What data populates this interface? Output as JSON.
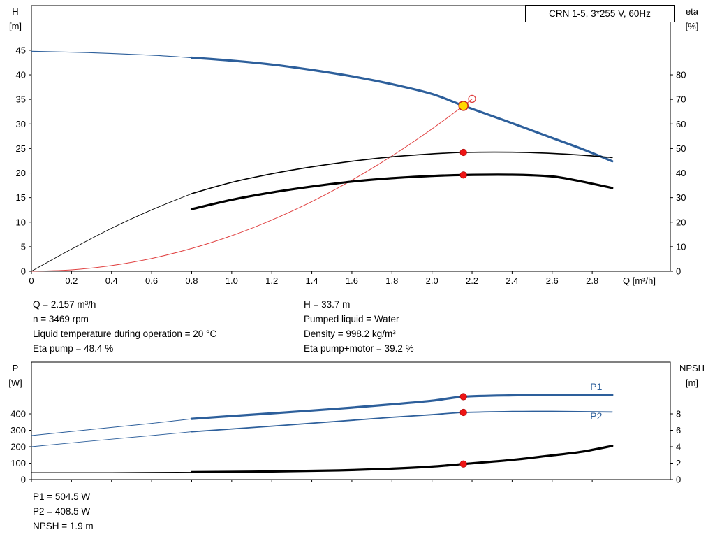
{
  "header": {
    "model_box": "CRN 1-5, 3*255 V, 60Hz"
  },
  "duty_info": {
    "left": [
      "Q = 2.157 m³/h",
      "n = 3469 rpm",
      "Liquid temperature during operation = 20 °C",
      "Eta pump = 48.4 %"
    ],
    "right": [
      "H = 33.7 m",
      "Pumped liquid = Water",
      "Density = 998.2 kg/m³",
      "Eta pump+motor = 39.2 %"
    ]
  },
  "power_info": [
    "P1 = 504.5 W",
    "P2 = 408.5 W",
    "NPSH = 1.9 m"
  ],
  "colors": {
    "curve_blue": "#2d5f9b",
    "curve_red": "#e04040",
    "curve_black": "#000000",
    "marker_red": "#ee1515",
    "marker_yellow": "#ffd800"
  },
  "chart_data": [
    {
      "name": "qh-eta-chart",
      "type": "line",
      "title": "CRN 1-5, 3*255 V, 60Hz",
      "x_axis": {
        "label": "Q [m³/h]",
        "min": 0,
        "max": 3.19,
        "tick_values": [
          0,
          0.2,
          0.4,
          0.6,
          0.8,
          1.0,
          1.2,
          1.4,
          1.6,
          1.8,
          2.0,
          2.2,
          2.4,
          2.6,
          2.8
        ],
        "tick_labels": [
          "0",
          "0.2",
          "0.4",
          "0.6",
          "0.8",
          "1.0",
          "1.2",
          "1.4",
          "1.6",
          "1.8",
          "2.0",
          "2.2",
          "2.4",
          "2.6",
          "2.8"
        ]
      },
      "y_left": {
        "title": [
          "H",
          "[m]"
        ],
        "min": 0,
        "max": 54.1,
        "tick_values": [
          0,
          5,
          10,
          15,
          20,
          25,
          30,
          35,
          40,
          45
        ],
        "tick_labels": [
          "0",
          "5",
          "10",
          "15",
          "20",
          "25",
          "30",
          "35",
          "40",
          "45"
        ]
      },
      "y_right": {
        "title": [
          "eta",
          "[%]"
        ],
        "min": 0,
        "max": 108.2,
        "tick_values": [
          0,
          10,
          20,
          30,
          40,
          50,
          60,
          70,
          80
        ],
        "tick_labels": [
          "0",
          "10",
          "20",
          "30",
          "40",
          "50",
          "60",
          "70",
          "80"
        ]
      },
      "series": [
        {
          "name": "head-curve-lead",
          "axis": "left",
          "color": "#2d5f9b",
          "width": 1.1,
          "points": [
            [
              0,
              44.8
            ],
            [
              0.3,
              44.5
            ],
            [
              0.6,
              44.0
            ],
            [
              0.8,
              43.5
            ]
          ]
        },
        {
          "name": "head-curve",
          "axis": "left",
          "color": "#2d5f9b",
          "width": 3.2,
          "points": [
            [
              0.8,
              43.5
            ],
            [
              1.0,
              42.9
            ],
            [
              1.2,
              42.1
            ],
            [
              1.4,
              41.0
            ],
            [
              1.6,
              39.7
            ],
            [
              1.8,
              38.1
            ],
            [
              2.0,
              36.1
            ],
            [
              2.157,
              33.7
            ],
            [
              2.35,
              30.9
            ],
            [
              2.55,
              27.9
            ],
            [
              2.75,
              24.9
            ],
            [
              2.9,
              22.4
            ]
          ]
        },
        {
          "name": "system-curve",
          "axis": "left",
          "color": "#e04040",
          "width": 1,
          "points": [
            [
              0,
              0
            ],
            [
              0.2,
              0.29
            ],
            [
              0.4,
              1.16
            ],
            [
              0.6,
              2.61
            ],
            [
              0.8,
              4.64
            ],
            [
              1.0,
              7.24
            ],
            [
              1.2,
              10.43
            ],
            [
              1.4,
              14.2
            ],
            [
              1.6,
              18.54
            ],
            [
              1.8,
              23.47
            ],
            [
              2.0,
              28.98
            ],
            [
              2.157,
              33.7
            ],
            [
              2.2,
              35.06
            ]
          ]
        },
        {
          "name": "eta-pump-curve-lead",
          "axis": "right",
          "color": "#000000",
          "width": 0.9,
          "points": [
            [
              0,
              0
            ],
            [
              0.2,
              9.0
            ],
            [
              0.4,
              17.5
            ],
            [
              0.6,
              25.0
            ],
            [
              0.8,
              31.6
            ]
          ]
        },
        {
          "name": "eta-pump-curve",
          "axis": "right",
          "color": "#000000",
          "width": 1.6,
          "points": [
            [
              0.8,
              31.6
            ],
            [
              1.0,
              36.2
            ],
            [
              1.2,
              39.7
            ],
            [
              1.4,
              42.5
            ],
            [
              1.6,
              44.8
            ],
            [
              1.8,
              46.6
            ],
            [
              2.0,
              47.8
            ],
            [
              2.157,
              48.4
            ],
            [
              2.4,
              48.5
            ],
            [
              2.6,
              48.0
            ],
            [
              2.75,
              47.3
            ],
            [
              2.9,
              46.3
            ]
          ]
        },
        {
          "name": "eta-pump-motor-curve",
          "axis": "right",
          "color": "#000000",
          "width": 3.2,
          "points": [
            [
              0.8,
              25.3
            ],
            [
              1.0,
              29.1
            ],
            [
              1.2,
              32.1
            ],
            [
              1.4,
              34.5
            ],
            [
              1.6,
              36.5
            ],
            [
              1.8,
              37.9
            ],
            [
              2.0,
              38.8
            ],
            [
              2.157,
              39.2
            ],
            [
              2.4,
              39.3
            ],
            [
              2.6,
              38.6
            ],
            [
              2.75,
              36.5
            ],
            [
              2.9,
              33.9
            ]
          ]
        }
      ],
      "markers": [
        {
          "name": "duty-point",
          "axis": "left",
          "x": 2.157,
          "y": 33.7,
          "r": 6.5,
          "fill": "#ffd800",
          "stroke": "#c8281e",
          "stroke_width": 1.6
        },
        {
          "name": "requested-duty-point",
          "axis": "left",
          "x": 2.2,
          "y": 35.1,
          "r": 5,
          "fill": "none",
          "stroke": "#e04040",
          "stroke_width": 1.3
        },
        {
          "name": "eta-pump-point",
          "axis": "right",
          "x": 2.157,
          "y": 48.4,
          "r": 4.8,
          "fill": "#ee1515",
          "stroke": "#a00000",
          "stroke_width": 0.6
        },
        {
          "name": "eta-pump-motor-point",
          "axis": "right",
          "x": 2.157,
          "y": 39.2,
          "r": 4.8,
          "fill": "#ee1515",
          "stroke": "#a00000",
          "stroke_width": 0.6
        }
      ],
      "labels": []
    },
    {
      "name": "power-npsh-chart",
      "type": "line",
      "x_axis": {
        "label": "",
        "min": 0,
        "max": 3.19,
        "tick_values": [
          0,
          0.2,
          0.4,
          0.6,
          0.8,
          1.0,
          1.2,
          1.4,
          1.6,
          1.8,
          2.0,
          2.2,
          2.4,
          2.6,
          2.8
        ],
        "tick_labels": []
      },
      "y_left": {
        "title": [
          "P",
          "[W]"
        ],
        "min": 0,
        "max": 715,
        "tick_values": [
          0,
          100,
          200,
          300,
          400
        ],
        "tick_labels": [
          "0",
          "100",
          "200",
          "300",
          "400"
        ]
      },
      "y_right": {
        "title": [
          "NPSH",
          "[m]"
        ],
        "min": 0,
        "max": 14.3,
        "tick_values": [
          0,
          2,
          4,
          6,
          8
        ],
        "tick_labels": [
          "0",
          "2",
          "4",
          "6",
          "8"
        ]
      },
      "series": [
        {
          "name": "p1-curve-lead",
          "axis": "left",
          "color": "#2d5f9b",
          "width": 1.0,
          "points": [
            [
              0,
              268
            ],
            [
              0.3,
              305
            ],
            [
              0.6,
              342
            ],
            [
              0.8,
              370
            ]
          ]
        },
        {
          "name": "p1-curve",
          "axis": "left",
          "color": "#2d5f9b",
          "width": 3.2,
          "points": [
            [
              0.8,
              370
            ],
            [
              1.0,
              387
            ],
            [
              1.2,
              403
            ],
            [
              1.4,
              420
            ],
            [
              1.6,
              438
            ],
            [
              1.8,
              458
            ],
            [
              2.0,
              480
            ],
            [
              2.157,
              504.5
            ],
            [
              2.4,
              513
            ],
            [
              2.6,
              516
            ],
            [
              2.9,
              515
            ]
          ]
        },
        {
          "name": "p2-curve-lead",
          "axis": "left",
          "color": "#2d5f9b",
          "width": 0.9,
          "points": [
            [
              0,
              200
            ],
            [
              0.3,
              235
            ],
            [
              0.6,
              268
            ],
            [
              0.8,
              291
            ]
          ]
        },
        {
          "name": "p2-curve",
          "axis": "left",
          "color": "#2d5f9b",
          "width": 1.8,
          "points": [
            [
              0.8,
              291
            ],
            [
              1.0,
              308
            ],
            [
              1.2,
              325
            ],
            [
              1.4,
              343
            ],
            [
              1.6,
              361
            ],
            [
              1.8,
              379
            ],
            [
              2.0,
              395
            ],
            [
              2.157,
              408.5
            ],
            [
              2.4,
              414
            ],
            [
              2.6,
              415
            ],
            [
              2.9,
              411
            ]
          ]
        },
        {
          "name": "npsh-curve-lead",
          "axis": "right",
          "color": "#000000",
          "width": 0.9,
          "points": [
            [
              0,
              0.85
            ],
            [
              0.4,
              0.86
            ],
            [
              0.8,
              0.9
            ]
          ]
        },
        {
          "name": "npsh-curve",
          "axis": "right",
          "color": "#000000",
          "width": 3.2,
          "points": [
            [
              0.8,
              0.9
            ],
            [
              1.1,
              0.96
            ],
            [
              1.4,
              1.06
            ],
            [
              1.6,
              1.16
            ],
            [
              1.8,
              1.33
            ],
            [
              2.0,
              1.58
            ],
            [
              2.157,
              1.9
            ],
            [
              2.4,
              2.4
            ],
            [
              2.6,
              2.95
            ],
            [
              2.75,
              3.4
            ],
            [
              2.9,
              4.1
            ]
          ]
        }
      ],
      "markers": [
        {
          "name": "p1-point",
          "axis": "left",
          "x": 2.157,
          "y": 504.5,
          "r": 4.8,
          "fill": "#ee1515",
          "stroke": "#a00000",
          "stroke_width": 0.6
        },
        {
          "name": "p2-point",
          "axis": "left",
          "x": 2.157,
          "y": 408.5,
          "r": 4.8,
          "fill": "#ee1515",
          "stroke": "#a00000",
          "stroke_width": 0.6
        },
        {
          "name": "npsh-point",
          "axis": "right",
          "x": 2.157,
          "y": 1.9,
          "r": 4.8,
          "fill": "#ee1515",
          "stroke": "#a00000",
          "stroke_width": 0.6
        }
      ],
      "labels": [
        {
          "name": "p1-label",
          "text": "P1",
          "axis": "left",
          "x": 2.82,
          "y": 545,
          "color": "#2d5f9b"
        },
        {
          "name": "p2-label",
          "text": "P2",
          "axis": "left",
          "x": 2.82,
          "y": 366,
          "color": "#2d5f9b"
        }
      ]
    }
  ]
}
